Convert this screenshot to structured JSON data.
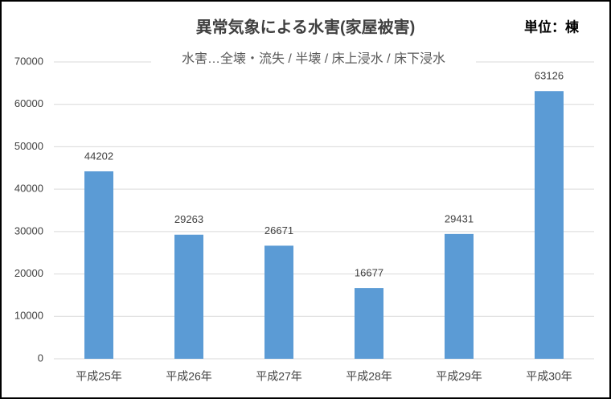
{
  "chart_data": {
    "type": "bar",
    "title": "異常気象による水害(家屋被害)",
    "unit": "単位：棟",
    "subtitle": "水害…全壊・流失 / 半壊 / 床上浸水 / 床下浸水",
    "categories": [
      "平成25年",
      "平成26年",
      "平成27年",
      "平成28年",
      "平成29年",
      "平成30年"
    ],
    "values": [
      44202,
      29263,
      26671,
      16677,
      29431,
      63126
    ],
    "color": "#5b9bd5",
    "ylim": [
      0,
      70000
    ],
    "yticks": [
      0,
      10000,
      20000,
      30000,
      40000,
      50000,
      60000,
      70000
    ],
    "grid": true
  }
}
